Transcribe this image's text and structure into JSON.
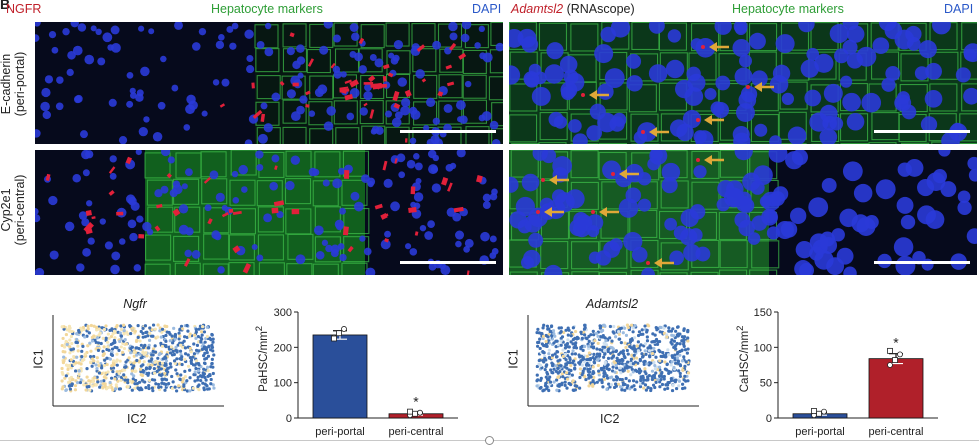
{
  "panel_letter": "B",
  "headers": {
    "left": {
      "marker": "NGFR",
      "middle": "Hepatocyte markers",
      "right": "DAPI"
    },
    "right": {
      "marker": "Adamtsl2",
      "marker_suffix": " (RNAscope)",
      "middle": "Hepatocyte markers",
      "right": "DAPI"
    }
  },
  "rows": [
    {
      "line1": "E-cadherin",
      "line2": "(peri-portal)"
    },
    {
      "line1": "Cyp2e1",
      "line2": "(peri-central)"
    }
  ],
  "scatter_left": {
    "title": "Ngfr",
    "xlabel": "IC2",
    "ylabel": "IC1"
  },
  "scatter_right": {
    "title": "Adamtsl2",
    "xlabel": "IC2",
    "ylabel": "IC1"
  },
  "chart_data": [
    {
      "type": "bar",
      "ylabel": "PaHSC/mm",
      "ylabel_sup": "2",
      "categories": [
        "peri-portal",
        "peri-central"
      ],
      "values": [
        235,
        12
      ],
      "errors": [
        12,
        4
      ],
      "points": [
        [
          228,
          240,
          252,
          225
        ],
        [
          8,
          12,
          15,
          18
        ]
      ],
      "colors": [
        "#2a4f9a",
        "#b0202a"
      ],
      "ylim": [
        0,
        300
      ],
      "yticks": [
        "0",
        "100",
        "200",
        "300"
      ],
      "annotation": {
        "category": "peri-central",
        "text": "*"
      }
    },
    {
      "type": "bar",
      "ylabel": "CaHSC/mm",
      "ylabel_sup": "2",
      "categories": [
        "peri-portal",
        "peri-central"
      ],
      "values": [
        6,
        84
      ],
      "errors": [
        2,
        7
      ],
      "points": [
        [
          4,
          6,
          9,
          10
        ],
        [
          75,
          82,
          90,
          95
        ]
      ],
      "colors": [
        "#2a4f9a",
        "#b0202a"
      ],
      "ylim": [
        0,
        150
      ],
      "yticks": [
        "0",
        "50",
        "100",
        "150"
      ],
      "annotation": {
        "category": "peri-central",
        "text": "*"
      }
    }
  ]
}
